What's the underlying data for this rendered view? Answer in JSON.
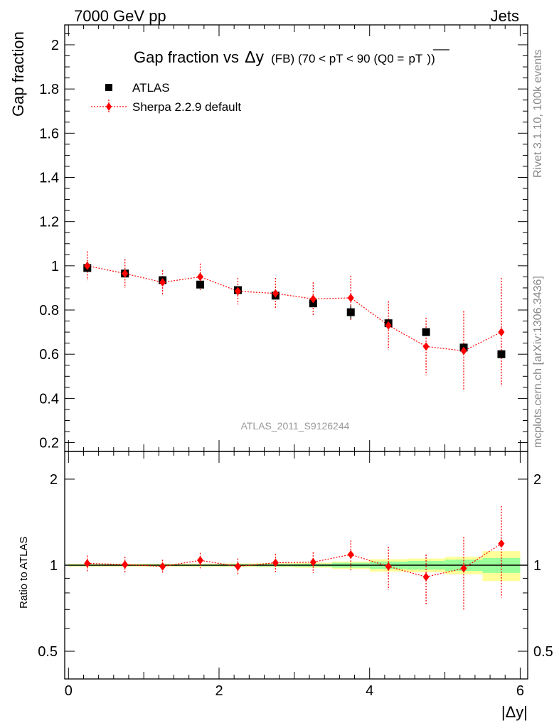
{
  "header": {
    "left": "7000 GeV pp",
    "right": "Jets"
  },
  "title": {
    "main": "Gap fraction vs",
    "delta": "Δy",
    "rest": "(FB) (70 < pT <  90 (Q0 =",
    "bar": "pT",
    "close": "))"
  },
  "side_labels": {
    "rivet": "Rivet 3.1.10,  100k events",
    "mcplots": "mcplots.cern.ch [arXiv:1306.3436]"
  },
  "watermark": "ATLAS_2011_S9126244",
  "colors": {
    "data": "#000000",
    "mc": "#ff0000",
    "band_outer": "#ffff99",
    "band_inner": "#99ff99"
  },
  "chart_data": [
    {
      "type": "scatter",
      "ylabel": "Gap fraction",
      "ylim": [
        0.16,
        2.09
      ],
      "yticks": [
        0.2,
        0.4,
        0.6,
        0.8,
        1,
        1.2,
        1.4,
        1.6,
        1.8,
        2
      ],
      "ytick_labels": [
        "0.2",
        "0.4",
        "0.6",
        "0.8",
        "1",
        "1.2",
        "1.4",
        "1.6",
        "1.8",
        "2"
      ],
      "xlim": [
        -0.05,
        6.1
      ],
      "legend": [
        {
          "name": "ATLAS"
        },
        {
          "name": "Sherpa 2.2.9 default"
        }
      ],
      "series": [
        {
          "name": "ATLAS",
          "x": [
            0.25,
            0.75,
            1.25,
            1.75,
            2.25,
            2.75,
            3.25,
            3.75,
            4.25,
            4.75,
            5.25,
            5.75
          ],
          "y": [
            0.99,
            0.965,
            0.935,
            0.915,
            0.89,
            0.865,
            0.83,
            0.79,
            0.74,
            0.7,
            0.63,
            0.6
          ],
          "err": [
            0.01,
            0.01,
            0.01,
            0.01,
            0.01,
            0.01,
            0.015,
            0.03,
            0.015,
            0.015,
            0.015,
            0.015
          ]
        },
        {
          "name": "Sherpa 2.2.9 default",
          "x": [
            0.25,
            0.75,
            1.25,
            1.75,
            2.25,
            2.75,
            3.25,
            3.75,
            4.25,
            4.75,
            5.25,
            5.75
          ],
          "y": [
            1.0,
            0.965,
            0.925,
            0.95,
            0.885,
            0.875,
            0.85,
            0.855,
            0.73,
            0.635,
            0.615,
            0.7
          ],
          "err": [
            0.065,
            0.065,
            0.055,
            0.06,
            0.06,
            0.07,
            0.075,
            0.1,
            0.11,
            0.13,
            0.18,
            0.245
          ]
        }
      ]
    },
    {
      "type": "scatter",
      "ylabel": "Ratio to ATLAS",
      "log_y": true,
      "ylim": [
        0.4,
        2.5
      ],
      "yticks": [
        0.5,
        1,
        2
      ],
      "ytick_labels": [
        "0.5",
        "1",
        "2"
      ],
      "xlabel": "|Δy|",
      "xlim": [
        -0.05,
        6.1
      ],
      "xticks": [
        0,
        2,
        4,
        6
      ],
      "xtick_labels": [
        "0",
        "2",
        "4",
        "6"
      ],
      "bands": {
        "x_edges": [
          0,
          0.5,
          1,
          1.5,
          2,
          2.5,
          3,
          3.5,
          4,
          4.5,
          5,
          5.5,
          6
        ],
        "outer_half": [
          0.012,
          0.012,
          0.012,
          0.012,
          0.014,
          0.016,
          0.02,
          0.03,
          0.05,
          0.055,
          0.07,
          0.12
        ],
        "inner_half": [
          0.006,
          0.006,
          0.006,
          0.006,
          0.008,
          0.01,
          0.012,
          0.02,
          0.03,
          0.035,
          0.045,
          0.06
        ]
      },
      "series": [
        {
          "name": "Sherpa 2.2.9 default",
          "x": [
            0.25,
            0.75,
            1.25,
            1.75,
            2.25,
            2.75,
            3.25,
            3.75,
            4.25,
            4.75,
            5.25,
            5.75
          ],
          "y": [
            1.015,
            1.005,
            0.99,
            1.04,
            0.99,
            1.02,
            1.025,
            1.09,
            0.99,
            0.91,
            0.975,
            1.19
          ],
          "err": [
            0.065,
            0.065,
            0.055,
            0.065,
            0.065,
            0.075,
            0.085,
            0.13,
            0.17,
            0.18,
            0.28,
            0.42
          ]
        }
      ]
    }
  ]
}
